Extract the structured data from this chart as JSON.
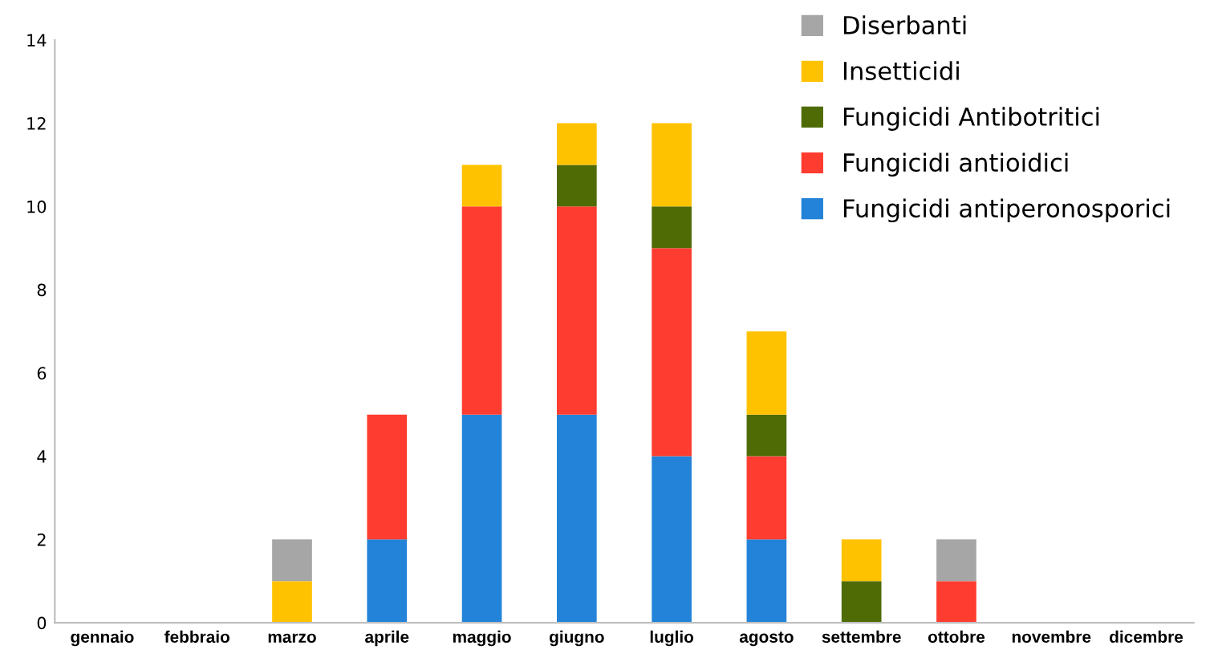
{
  "chart_data": {
    "type": "bar",
    "stacked": true,
    "categories": [
      "gennaio",
      "febbraio",
      "marzo",
      "aprile",
      "maggio",
      "giugno",
      "luglio",
      "agosto",
      "settembre",
      "ottobre",
      "novembre",
      "dicembre"
    ],
    "series": [
      {
        "name": "Fungicidi antiperonosporici",
        "color": "#2383d8",
        "values": [
          0,
          0,
          0,
          2,
          5,
          5,
          4,
          2,
          0,
          0,
          0,
          0
        ]
      },
      {
        "name": "Fungicidi antioidici",
        "color": "#ff3c30",
        "values": [
          0,
          0,
          0,
          3,
          5,
          5,
          5,
          2,
          0,
          1,
          0,
          0
        ]
      },
      {
        "name": "Fungicidi Antibotritici",
        "color": "#4f6b06",
        "values": [
          0,
          0,
          0,
          0,
          0,
          1,
          1,
          1,
          1,
          0,
          0,
          0
        ]
      },
      {
        "name": "Insetticidi",
        "color": "#ffc200",
        "values": [
          0,
          0,
          1,
          0,
          1,
          1,
          2,
          2,
          1,
          0,
          0,
          0
        ]
      },
      {
        "name": "Diserbanti",
        "color": "#a6a6a6",
        "values": [
          0,
          0,
          1,
          0,
          0,
          0,
          0,
          0,
          0,
          1,
          0,
          0
        ]
      }
    ],
    "ylim": [
      0,
      14
    ],
    "yticks": [
      0,
      2,
      4,
      6,
      8,
      10,
      12,
      14
    ],
    "grid": false,
    "legend": "top right"
  }
}
